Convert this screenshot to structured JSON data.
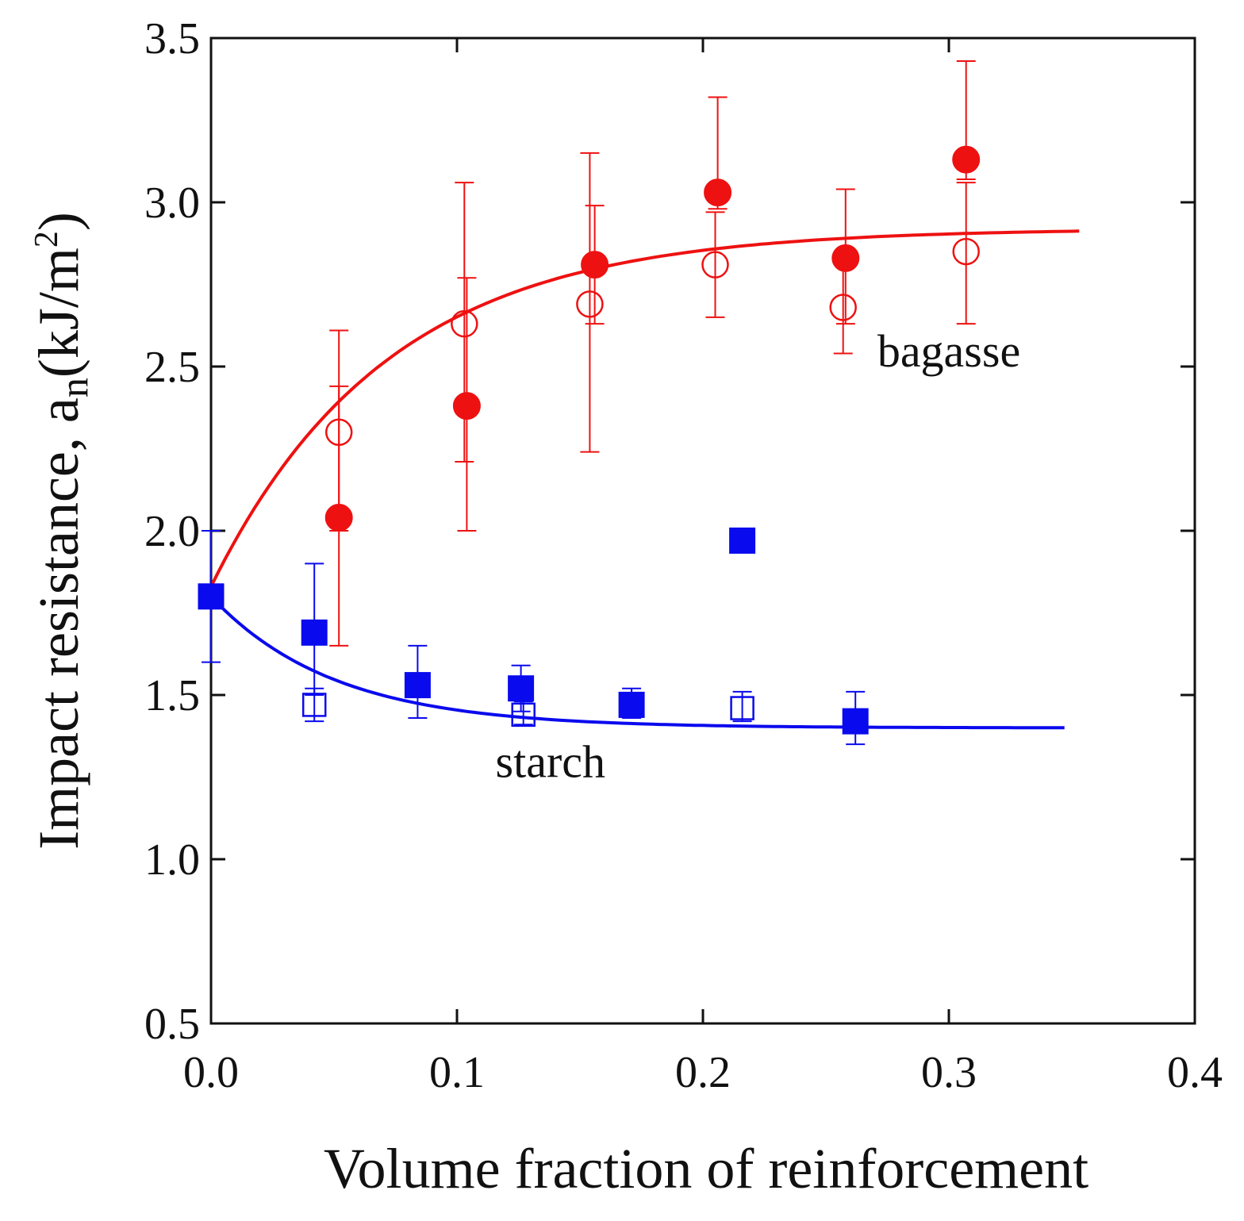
{
  "chart_data": {
    "type": "scatter",
    "title": "",
    "xlabel": "Volume fraction of reinforcement",
    "ylabel_parts": {
      "main": "Impact resistance, a",
      "sub": "n",
      "unit_open": "(kJ/m",
      "sup": "2",
      "unit_close": ")"
    },
    "xlim": [
      0.0,
      0.4
    ],
    "ylim": [
      0.5,
      3.5
    ],
    "xticks": [
      "0.0",
      "0.1",
      "0.2",
      "0.3",
      "0.4"
    ],
    "yticks": [
      "0.5",
      "1.0",
      "1.5",
      "2.0",
      "2.5",
      "3.0",
      "3.5"
    ],
    "grid": false,
    "annotations": [
      {
        "text": "bagasse",
        "x": 0.3,
        "y": 2.5
      },
      {
        "text": "starch",
        "x": 0.138,
        "y": 1.25
      }
    ],
    "series": [
      {
        "name": "bagasse (filled)",
        "marker": "circle",
        "filled": true,
        "color": "#ee1111",
        "points": [
          {
            "x": 0.052,
            "y": 2.04,
            "err_lo": 1.65,
            "err_hi": 2.44
          },
          {
            "x": 0.104,
            "y": 2.38,
            "err_lo": 2.0,
            "err_hi": 2.77
          },
          {
            "x": 0.156,
            "y": 2.81,
            "err_lo": 2.63,
            "err_hi": 2.99
          },
          {
            "x": 0.206,
            "y": 3.03,
            "err_lo": 2.98,
            "err_hi": 3.32
          },
          {
            "x": 0.258,
            "y": 2.83,
            "err_lo": 2.63,
            "err_hi": 3.04
          },
          {
            "x": 0.307,
            "y": 3.13,
            "err_lo": 3.07,
            "err_hi": 3.43
          }
        ]
      },
      {
        "name": "bagasse (open)",
        "marker": "circle",
        "filled": false,
        "color": "#ee1111",
        "points": [
          {
            "x": 0.052,
            "y": 2.3,
            "err_lo": 2.0,
            "err_hi": 2.61
          },
          {
            "x": 0.103,
            "y": 2.63,
            "err_lo": 2.21,
            "err_hi": 3.06
          },
          {
            "x": 0.154,
            "y": 2.69,
            "err_lo": 2.24,
            "err_hi": 3.15
          },
          {
            "x": 0.205,
            "y": 2.81,
            "err_lo": 2.65,
            "err_hi": 2.97
          },
          {
            "x": 0.257,
            "y": 2.68,
            "err_lo": 2.54,
            "err_hi": 2.83
          },
          {
            "x": 0.307,
            "y": 2.85,
            "err_lo": 2.63,
            "err_hi": 3.06
          }
        ]
      },
      {
        "name": "starch (filled)",
        "marker": "square",
        "filled": true,
        "color": "#0a0aee",
        "points": [
          {
            "x": 0.0,
            "y": 1.8,
            "err_lo": 1.6,
            "err_hi": 2.0
          },
          {
            "x": 0.042,
            "y": 1.69,
            "err_lo": 1.5,
            "err_hi": 1.9
          },
          {
            "x": 0.084,
            "y": 1.53,
            "err_lo": 1.43,
            "err_hi": 1.65
          },
          {
            "x": 0.126,
            "y": 1.52,
            "err_lo": 1.45,
            "err_hi": 1.59
          },
          {
            "x": 0.171,
            "y": 1.47,
            "err_lo": 1.43,
            "err_hi": 1.52
          },
          {
            "x": 0.216,
            "y": 1.97,
            "err_lo": null,
            "err_hi": null
          },
          {
            "x": 0.262,
            "y": 1.42,
            "err_lo": 1.35,
            "err_hi": 1.51
          }
        ]
      },
      {
        "name": "starch (open)",
        "marker": "square",
        "filled": false,
        "color": "#0a0aee",
        "points": [
          {
            "x": 0.042,
            "y": 1.47,
            "err_lo": 1.42,
            "err_hi": 1.52
          },
          {
            "x": 0.127,
            "y": 1.44,
            "err_lo": 1.41,
            "err_hi": 1.48
          },
          {
            "x": 0.216,
            "y": 1.46,
            "err_lo": 1.42,
            "err_hi": 1.51
          }
        ]
      }
    ],
    "fit_curves": [
      {
        "name": "bagasse fit",
        "color": "#ee1111",
        "x_start": 0.0,
        "x_end": 0.353,
        "y0": 1.83,
        "y_inf": 2.92,
        "k": 14.0
      },
      {
        "name": "starch fit",
        "color": "#0a0aee",
        "x_start": 0.0,
        "x_end": 0.347,
        "y0": 1.8,
        "y_inf": 1.4,
        "k": 20.0
      }
    ]
  }
}
